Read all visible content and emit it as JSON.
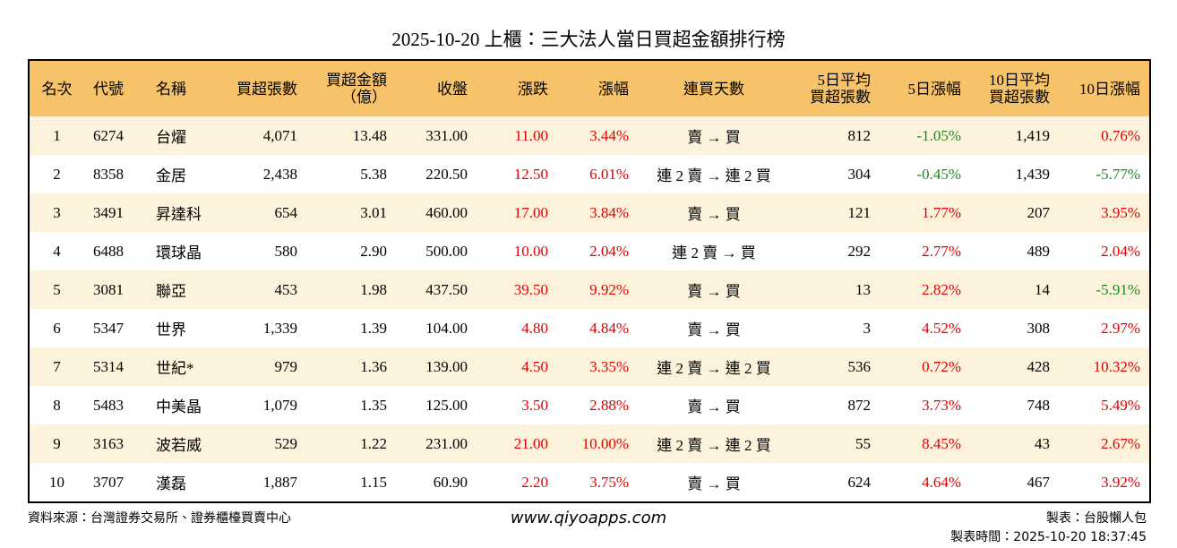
{
  "title": "2025-10-20 上櫃：三大法人當日買超金額排行榜",
  "table": {
    "header": [
      "名次",
      "代號",
      "名稱",
      "買超張數",
      "買超金額\n（億）",
      "收盤",
      "漲跌",
      "漲幅",
      "連買天數",
      "5日平均\n買超張數",
      "5日漲幅",
      "10日平均\n買超張數",
      "10日漲幅"
    ],
    "rows": [
      [
        "1",
        "6274",
        "台燿",
        "4,071",
        "13.48",
        "331.00",
        "11.00",
        "3.44%",
        "賣 → 買",
        "812",
        "-1.05%",
        "1,419",
        "0.76%"
      ],
      [
        "2",
        "8358",
        "金居",
        "2,438",
        "5.38",
        "220.50",
        "12.50",
        "6.01%",
        "連 2 賣 → 連 2 買",
        "304",
        "-0.45%",
        "1,439",
        "-5.77%"
      ],
      [
        "3",
        "3491",
        "昇達科",
        "654",
        "3.01",
        "460.00",
        "17.00",
        "3.84%",
        "賣 → 買",
        "121",
        "1.77%",
        "207",
        "3.95%"
      ],
      [
        "4",
        "6488",
        "環球晶",
        "580",
        "2.90",
        "500.00",
        "10.00",
        "2.04%",
        "連 2 賣 → 買",
        "292",
        "2.77%",
        "489",
        "2.04%"
      ],
      [
        "5",
        "3081",
        "聯亞",
        "453",
        "1.98",
        "437.50",
        "39.50",
        "9.92%",
        "賣 → 買",
        "13",
        "2.82%",
        "14",
        "-5.91%"
      ],
      [
        "6",
        "5347",
        "世界",
        "1,339",
        "1.39",
        "104.00",
        "4.80",
        "4.84%",
        "賣 → 買",
        "3",
        "4.52%",
        "308",
        "2.97%"
      ],
      [
        "7",
        "5314",
        "世紀*",
        "979",
        "1.36",
        "139.00",
        "4.50",
        "3.35%",
        "連 2 賣 → 連 2 買",
        "536",
        "0.72%",
        "428",
        "10.32%"
      ],
      [
        "8",
        "5483",
        "中美晶",
        "1,079",
        "1.35",
        "125.00",
        "3.50",
        "2.88%",
        "賣 → 買",
        "872",
        "3.73%",
        "748",
        "5.49%"
      ],
      [
        "9",
        "3163",
        "波若威",
        "529",
        "1.22",
        "231.00",
        "21.00",
        "10.00%",
        "連 2 賣 → 連 2 買",
        "55",
        "8.45%",
        "43",
        "2.67%"
      ],
      [
        "10",
        "3707",
        "漢磊",
        "1,887",
        "1.15",
        "60.90",
        "2.20",
        "3.75%",
        "賣 → 買",
        "624",
        "4.64%",
        "467",
        "3.92%"
      ]
    ]
  },
  "footer": {
    "source": "資料來源：台灣證券交易所、證券櫃檯買賣中心",
    "website": "www.qiyoapps.com",
    "author": "製表：台股懶人包",
    "timestamp": "製表時間：2025-10-20 18:37:45"
  }
}
